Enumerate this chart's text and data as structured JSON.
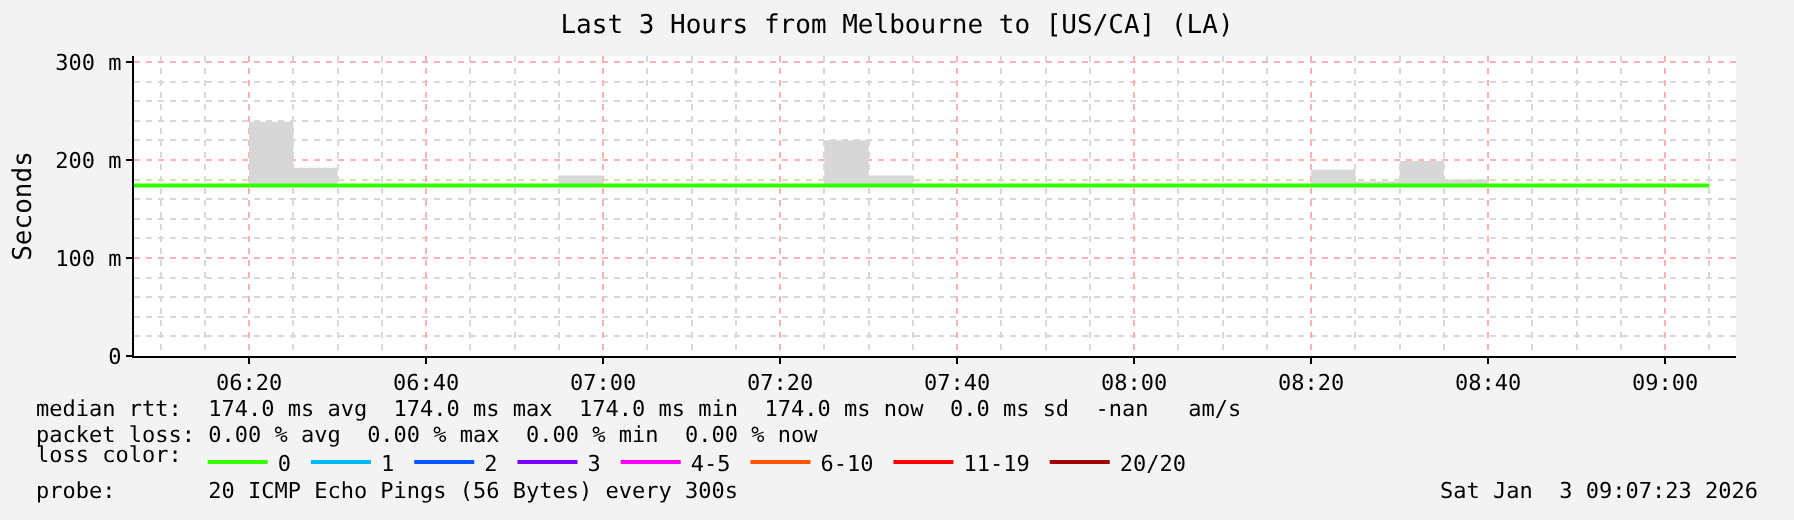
{
  "chart_data": {
    "type": "step",
    "title": "Last 3 Hours from Melbourne to [US/CA] (LA)",
    "ylabel": "Seconds",
    "legend_title": "loss color:",
    "legend": "bottom",
    "grid": true,
    "xlim": [
      "2026-01-03T06:07",
      "2026-01-03T09:08"
    ],
    "xticks": [
      {
        "value": "2026-01-03T06:20",
        "label": "06:20"
      },
      {
        "value": "2026-01-03T06:40",
        "label": "06:40"
      },
      {
        "value": "2026-01-03T07:00",
        "label": "07:00"
      },
      {
        "value": "2026-01-03T07:20",
        "label": "07:20"
      },
      {
        "value": "2026-01-03T07:40",
        "label": "07:40"
      },
      {
        "value": "2026-01-03T08:00",
        "label": "08:00"
      },
      {
        "value": "2026-01-03T08:20",
        "label": "08:20"
      },
      {
        "value": "2026-01-03T08:40",
        "label": "08:40"
      },
      {
        "value": "2026-01-03T09:00",
        "label": "09:00"
      }
    ],
    "ylim": [
      0,
      306
    ],
    "yticks": [
      0,
      {
        "value": 100,
        "label": "100 m"
      },
      {
        "value": 200,
        "label": "200 m"
      },
      {
        "value": 300,
        "label": "300 m"
      }
    ],
    "series": [
      {
        "name": "0",
        "color": "#33ff00",
        "x": [
          "2026-01-03T06:07",
          "2026-01-03T06:10",
          "2026-01-03T06:15",
          "2026-01-03T06:20",
          "2026-01-03T06:25",
          "2026-01-03T06:30",
          "2026-01-03T06:35",
          "2026-01-03T06:40",
          "2026-01-03T06:45",
          "2026-01-03T06:50",
          "2026-01-03T06:55",
          "2026-01-03T07:00",
          "2026-01-03T07:05",
          "2026-01-03T07:10",
          "2026-01-03T07:15",
          "2026-01-03T07:20",
          "2026-01-03T07:25",
          "2026-01-03T07:30",
          "2026-01-03T07:35",
          "2026-01-03T07:40",
          "2026-01-03T07:45",
          "2026-01-03T07:50",
          "2026-01-03T07:55",
          "2026-01-03T08:00",
          "2026-01-03T08:05",
          "2026-01-03T08:10",
          "2026-01-03T08:15",
          "2026-01-03T08:20",
          "2026-01-03T08:25",
          "2026-01-03T08:30",
          "2026-01-03T08:35",
          "2026-01-03T08:40",
          "2026-01-03T08:45",
          "2026-01-03T08:50",
          "2026-01-03T08:55",
          "2026-01-03T09:00",
          "2026-01-03T09:05"
        ],
        "values": [
          174,
          174,
          174,
          174,
          174,
          174,
          174,
          174,
          174,
          174,
          174,
          174,
          174,
          174,
          174,
          174,
          174,
          174,
          174,
          174,
          174,
          174,
          174,
          174,
          174,
          174,
          174,
          174,
          174,
          174,
          174,
          174,
          174,
          174,
          174,
          174,
          174
        ],
        "lower": [
          174,
          174,
          174,
          174,
          174,
          174,
          174,
          174,
          174,
          174,
          174,
          174,
          174,
          174,
          174,
          174,
          174,
          174,
          174,
          174,
          174,
          174,
          174,
          174,
          174,
          174,
          174,
          174,
          174,
          174,
          174,
          174,
          174,
          174,
          174,
          174,
          174
        ],
        "upper": [
          174,
          174,
          174,
          239,
          192,
          174,
          174,
          174,
          174,
          174,
          184,
          174,
          174,
          174,
          174,
          174,
          220,
          184,
          174,
          174,
          174,
          174,
          174,
          174,
          174,
          174,
          174,
          190,
          178,
          199,
          180,
          174,
          174,
          174,
          174,
          174,
          174
        ]
      },
      {
        "name": "1",
        "color": "#00b8ff",
        "values": [
          null
        ]
      },
      {
        "name": "2",
        "color": "#0059ff",
        "values": [
          null
        ]
      },
      {
        "name": "3",
        "color": "#7e00ff",
        "values": [
          null
        ]
      },
      {
        "name": "4-5",
        "color": "#ff00ff",
        "values": [
          null
        ]
      },
      {
        "name": "6-10",
        "color": "#ff5500",
        "values": [
          null
        ]
      },
      {
        "name": "11-19",
        "color": "#ff0000",
        "values": [
          null
        ]
      },
      {
        "name": "20/20",
        "color": "#a10000",
        "values": [
          null
        ]
      }
    ],
    "annotations": [
      "median rtt:  174.0 ms avg  174.0 ms max  174.0 ms min  174.0 ms now  0.0 ms sd  -nan   am/s",
      "packet loss: 0.00 % avg  0.00 % max  0.00 % min  0.00 % now",
      "probe:       20 ICMP Echo Pings (56 Bytes) every 300s",
      "Sat Jan  3 09:07:23 2026"
    ]
  }
}
